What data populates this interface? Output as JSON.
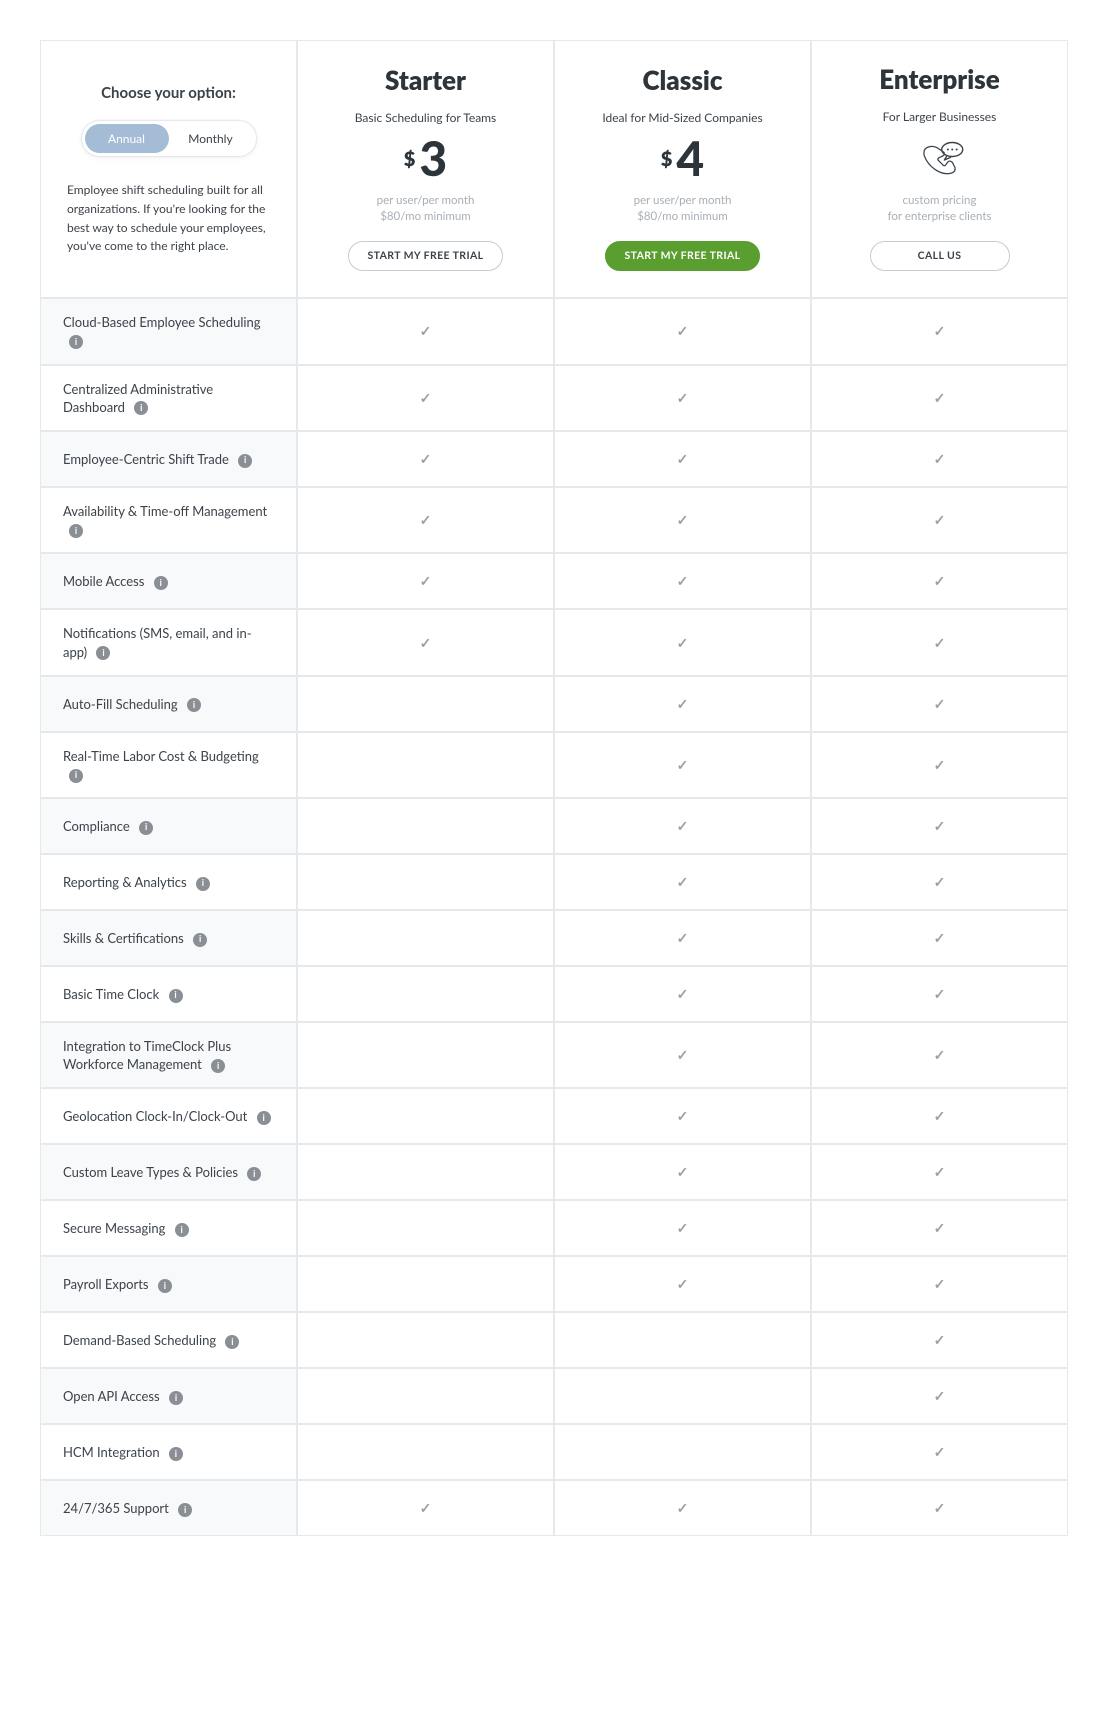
{
  "colors": {
    "border": "#e6e9ec",
    "text": "#3b4249",
    "heading": "#2d343a",
    "muted": "#a8afb6",
    "check": "#9aa1a8",
    "alt_row_bg": "#f7f9fb",
    "toggle_active_bg": "#a5bcd6",
    "cta_green": "#5a9e30",
    "info_bg": "#8a8f95"
  },
  "option": {
    "choose_label": "Choose your option:",
    "annual_label": "Annual",
    "monthly_label": "Monthly",
    "active": "annual",
    "blurb": "Employee shift scheduling built for all organizations. If you're looking for the best way to schedule your employees, you've come to the right place."
  },
  "plans": [
    {
      "id": "starter",
      "name": "Starter",
      "subtitle": "Basic Scheduling for Teams",
      "currency": "$",
      "price": "3",
      "note1": "per user/per month",
      "note2": "$80/mo minimum",
      "cta_label": "START MY FREE TRIAL",
      "cta_style": "outline",
      "has_icon": false
    },
    {
      "id": "classic",
      "name": "Classic",
      "subtitle": "Ideal for Mid-Sized Companies",
      "currency": "$",
      "price": "4",
      "note1": "per user/per month",
      "note2": "$80/mo minimum",
      "cta_label": "START MY FREE TRIAL",
      "cta_style": "solid",
      "has_icon": false
    },
    {
      "id": "enterprise",
      "name": "Enterprise",
      "subtitle": "For Larger Businesses",
      "currency": "",
      "price": "",
      "note1": "custom pricing",
      "note2": "for enterprise clients",
      "cta_label": "CALL US",
      "cta_style": "outline",
      "has_icon": true
    }
  ],
  "features": [
    {
      "label": "Cloud-Based Employee Scheduling",
      "values": [
        true,
        true,
        true
      ]
    },
    {
      "label": "Centralized Administrative Dashboard",
      "values": [
        true,
        true,
        true
      ]
    },
    {
      "label": "Employee-Centric Shift Trade",
      "values": [
        true,
        true,
        true
      ]
    },
    {
      "label": "Availability & Time-off Management",
      "values": [
        true,
        true,
        true
      ]
    },
    {
      "label": "Mobile Access",
      "values": [
        true,
        true,
        true
      ]
    },
    {
      "label": "Notifications (SMS, email, and in-app)",
      "values": [
        true,
        true,
        true
      ]
    },
    {
      "label": "Auto-Fill Scheduling",
      "values": [
        false,
        true,
        true
      ]
    },
    {
      "label": "Real-Time Labor Cost & Budgeting",
      "values": [
        false,
        true,
        true
      ]
    },
    {
      "label": "Compliance",
      "values": [
        false,
        true,
        true
      ]
    },
    {
      "label": "Reporting & Analytics",
      "values": [
        false,
        true,
        true
      ]
    },
    {
      "label": "Skills & Certifications",
      "values": [
        false,
        true,
        true
      ]
    },
    {
      "label": "Basic Time Clock",
      "values": [
        false,
        true,
        true
      ]
    },
    {
      "label": "Integration to TimeClock Plus Workforce Management",
      "values": [
        false,
        true,
        true
      ]
    },
    {
      "label": "Geolocation Clock-In/Clock-Out",
      "values": [
        false,
        true,
        true
      ]
    },
    {
      "label": "Custom Leave Types & Policies",
      "values": [
        false,
        true,
        true
      ]
    },
    {
      "label": "Secure Messaging",
      "values": [
        false,
        true,
        true
      ]
    },
    {
      "label": "Payroll Exports",
      "values": [
        false,
        true,
        true
      ]
    },
    {
      "label": "Demand-Based Scheduling",
      "values": [
        false,
        false,
        true
      ]
    },
    {
      "label": "Open API Access",
      "values": [
        false,
        false,
        true
      ]
    },
    {
      "label": "HCM Integration",
      "values": [
        false,
        false,
        true
      ]
    },
    {
      "label": "24/7/365 Support",
      "values": [
        true,
        true,
        true
      ]
    }
  ],
  "icons": {
    "check_glyph": "✓",
    "info_glyph": "i"
  }
}
